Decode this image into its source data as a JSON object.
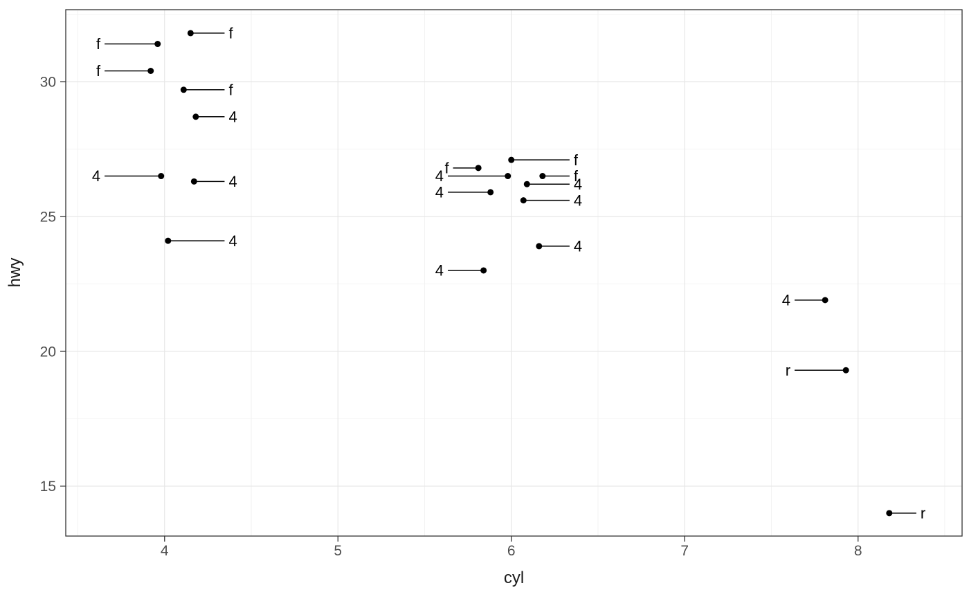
{
  "colors": {
    "background": "#ffffff",
    "panel_bg": "#ffffff",
    "grid_major": "#e6e6e6",
    "grid_minor": "#f2f2f2",
    "panel_border": "#333333",
    "tick_mark": "#333333",
    "tick_label": "#4d4d4d",
    "axis_title": "#1a1a1a",
    "point": "#000000",
    "segment": "#000000",
    "label_text": "#000000"
  },
  "chart_data": {
    "type": "scatter",
    "title": "",
    "xlabel": "cyl",
    "ylabel": "hwy",
    "x_domain": [
      3.43,
      8.6
    ],
    "y_domain": [
      13.15,
      32.67
    ],
    "x_ticks": [
      4,
      5,
      6,
      7,
      8
    ],
    "y_ticks": [
      15,
      20,
      25,
      30
    ],
    "x_minor": [
      3.5,
      4.5,
      5.5,
      6.5,
      7.5,
      8.5
    ],
    "y_minor": [
      17.5,
      22.5,
      27.5,
      32.5
    ],
    "grid": "major and minor, light gray on white, dark panel border",
    "legend": "none",
    "description": "Jittered scatter of hwy vs cyl; each black point has a horizontal leader segment connecting it to a text label (drv value: f, 4 or r).",
    "points": [
      {
        "x": 4.15,
        "y": 31.8,
        "label": "f",
        "side": "right",
        "label_x": 4.37
      },
      {
        "x": 3.96,
        "y": 31.4,
        "label": "f",
        "side": "left",
        "label_x": 3.63
      },
      {
        "x": 3.92,
        "y": 30.4,
        "label": "f",
        "side": "left",
        "label_x": 3.63
      },
      {
        "x": 4.11,
        "y": 29.7,
        "label": "f",
        "side": "right",
        "label_x": 4.37
      },
      {
        "x": 4.18,
        "y": 28.7,
        "label": "4",
        "side": "right",
        "label_x": 4.37
      },
      {
        "x": 3.98,
        "y": 26.5,
        "label": "4",
        "side": "left",
        "label_x": 3.63
      },
      {
        "x": 4.17,
        "y": 26.3,
        "label": "4",
        "side": "right",
        "label_x": 4.37
      },
      {
        "x": 4.02,
        "y": 24.1,
        "label": "4",
        "side": "right",
        "label_x": 4.37
      },
      {
        "x": 6.0,
        "y": 27.1,
        "label": "f",
        "side": "right",
        "label_x": 6.36
      },
      {
        "x": 5.81,
        "y": 26.8,
        "label": "f",
        "side": "left",
        "label_x": 5.64
      },
      {
        "x": 5.98,
        "y": 26.5,
        "label": "4",
        "side": "left",
        "label_x": 5.61
      },
      {
        "x": 6.18,
        "y": 26.5,
        "label": "f",
        "side": "right",
        "label_x": 6.36
      },
      {
        "x": 6.09,
        "y": 26.2,
        "label": "4",
        "side": "right",
        "label_x": 6.36
      },
      {
        "x": 5.88,
        "y": 25.9,
        "label": "4",
        "side": "left",
        "label_x": 5.61
      },
      {
        "x": 6.07,
        "y": 25.6,
        "label": "4",
        "side": "right",
        "label_x": 6.36
      },
      {
        "x": 6.16,
        "y": 23.9,
        "label": "4",
        "side": "right",
        "label_x": 6.36
      },
      {
        "x": 5.84,
        "y": 23.0,
        "label": "4",
        "side": "left",
        "label_x": 5.61
      },
      {
        "x": 7.81,
        "y": 21.9,
        "label": "4",
        "side": "left",
        "label_x": 7.61
      },
      {
        "x": 7.93,
        "y": 19.3,
        "label": "r",
        "side": "left",
        "label_x": 7.61
      },
      {
        "x": 8.18,
        "y": 14.0,
        "label": "r",
        "side": "right",
        "label_x": 8.36
      }
    ]
  }
}
